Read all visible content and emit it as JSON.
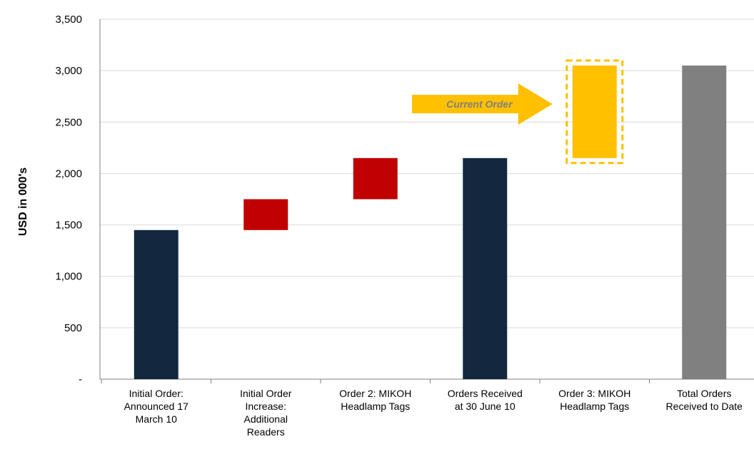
{
  "chart_data": {
    "type": "bar",
    "subtype": "waterfall",
    "ylabel": "USD in 000's",
    "ylim": [
      0,
      3500
    ],
    "y_ticks": [
      0,
      500,
      1000,
      1500,
      2000,
      2500,
      3000,
      3500
    ],
    "y_tick_labels": [
      "-",
      "500",
      "1,000",
      "1,500",
      "2,000",
      "2,500",
      "3,000",
      "3,500"
    ],
    "grid": "horizontal",
    "categories": [
      [
        "Initial Order:",
        "Announced 17",
        "March 10"
      ],
      [
        "Initial Order",
        "Increase:",
        "Additional",
        "Readers"
      ],
      [
        "Order 2: MIKOH",
        "Headlamp Tags"
      ],
      [
        "Orders Received",
        "at 30 June 10"
      ],
      [
        "Order 3: MIKOH",
        "Headlamp Tags"
      ],
      [
        "Total Orders",
        "Received to Date"
      ]
    ],
    "bars": [
      {
        "base": 0,
        "value": 1450,
        "color": "#13283f",
        "kind": "total"
      },
      {
        "base": 1450,
        "value": 1750,
        "color": "#c00000",
        "kind": "increase"
      },
      {
        "base": 1750,
        "value": 2150,
        "color": "#c00000",
        "kind": "increase"
      },
      {
        "base": 0,
        "value": 2150,
        "color": "#13283f",
        "kind": "total"
      },
      {
        "base": 2150,
        "value": 3050,
        "color": "#ffc000",
        "kind": "current",
        "highlight_border": "#ffc000"
      },
      {
        "base": 0,
        "value": 3050,
        "color": "#808080",
        "kind": "total"
      }
    ],
    "annotation": {
      "text": "Current Order",
      "points_to_category": 4,
      "arrow_color": "#ffc000",
      "text_color": "#808080"
    },
    "colors": {
      "total": "#13283f",
      "increase": "#c00000",
      "current": "#ffc000",
      "grand_total": "#808080",
      "grid": "#d9d9d9",
      "axis": "#808080"
    }
  }
}
